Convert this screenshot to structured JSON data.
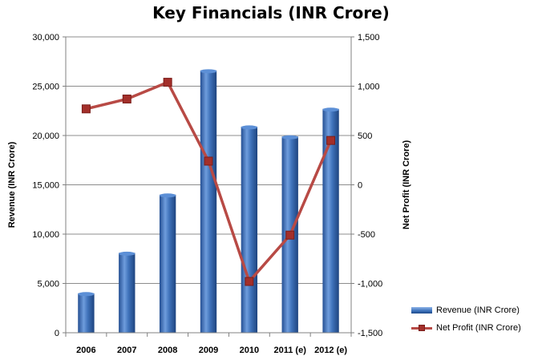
{
  "chart_data": {
    "type": "bar",
    "title": "Key Financials (INR Crore)",
    "categories": [
      "2006",
      "2007",
      "2008",
      "2009",
      "2010",
      "2011 (e)",
      "2012 (e)"
    ],
    "series": [
      {
        "name": "Revenue (INR Crore)",
        "type": "bar",
        "axis": "left",
        "color": "#3a6fb8",
        "values": [
          4000,
          8100,
          14000,
          26600,
          20900,
          19900,
          22700
        ]
      },
      {
        "name": "Net Profit (INR Crore)",
        "type": "line",
        "axis": "right",
        "color": "#b84a45",
        "values": [
          770,
          870,
          1040,
          240,
          -980,
          -510,
          450
        ]
      }
    ],
    "ylabel": "Revenue (INR Crore)",
    "ylabel_right": "Net Profit (INR Crore)",
    "ylim": [
      0,
      30000
    ],
    "ylim_right": [
      -1500,
      1500
    ],
    "yticks": [
      "0",
      "5,000",
      "10,000",
      "15,000",
      "20,000",
      "25,000",
      "30,000"
    ],
    "yticks_right": [
      "-1,500",
      "-1,000",
      "-500",
      "0",
      "500",
      "1,000",
      "1,500"
    ],
    "grid": true,
    "legend": "bottom-right"
  }
}
